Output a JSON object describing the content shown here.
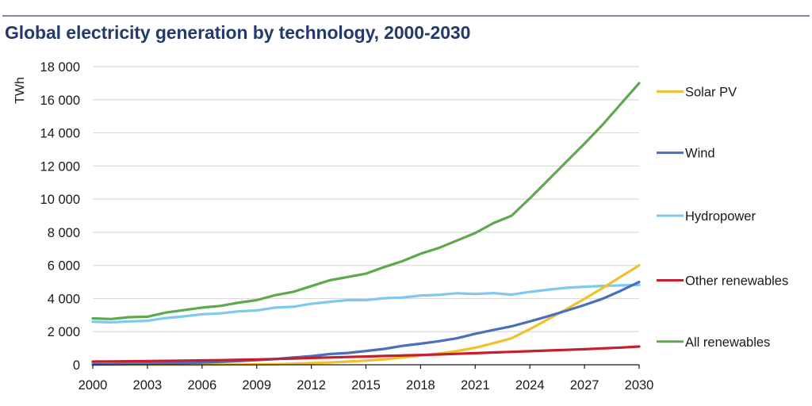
{
  "chart_data": {
    "type": "line",
    "title": "Global electricity generation by technology, 2000-2030",
    "xlabel": "",
    "ylabel": "TWh",
    "xlim": [
      2000,
      2030
    ],
    "ylim": [
      0,
      18000
    ],
    "grid": true,
    "legend_position": "right",
    "x_ticks": [
      2000,
      2003,
      2006,
      2009,
      2012,
      2015,
      2018,
      2021,
      2024,
      2027,
      2030
    ],
    "x_tick_labels": [
      "2000",
      "2003",
      "2006",
      "2009",
      "2012",
      "2015",
      "2018",
      "2021",
      "2024",
      "2027",
      "2030"
    ],
    "y_ticks": [
      0,
      2000,
      4000,
      6000,
      8000,
      10000,
      12000,
      14000,
      16000,
      18000
    ],
    "y_tick_labels": [
      "0",
      "2 000",
      "4 000",
      "6 000",
      "8 000",
      "10 000",
      "12 000",
      "14 000",
      "16 000",
      "18 000"
    ],
    "x": [
      2000,
      2001,
      2002,
      2003,
      2004,
      2005,
      2006,
      2007,
      2008,
      2009,
      2010,
      2011,
      2012,
      2013,
      2014,
      2015,
      2016,
      2017,
      2018,
      2019,
      2020,
      2021,
      2022,
      2023,
      2024,
      2025,
      2026,
      2027,
      2028,
      2029,
      2030
    ],
    "series": [
      {
        "name": "Solar PV",
        "color": "#f0c02f",
        "values": [
          1,
          2,
          3,
          4,
          5,
          5,
          6,
          8,
          12,
          20,
          32,
          60,
          100,
          140,
          190,
          250,
          330,
          440,
          560,
          680,
          830,
          1030,
          1300,
          1600,
          2150,
          2750,
          3350,
          3980,
          4640,
          5320,
          6000
        ]
      },
      {
        "name": "Wind",
        "color": "#4a6fbd",
        "values": [
          30,
          38,
          52,
          63,
          85,
          104,
          133,
          170,
          220,
          276,
          342,
          437,
          522,
          645,
          712,
          831,
          958,
          1140,
          1273,
          1420,
          1600,
          1870,
          2100,
          2320,
          2620,
          2930,
          3260,
          3610,
          3990,
          4470,
          5000
        ]
      },
      {
        "name": "Hydropower",
        "color": "#7fc8ef",
        "values": [
          2600,
          2560,
          2620,
          2650,
          2820,
          2920,
          3050,
          3100,
          3220,
          3280,
          3450,
          3500,
          3680,
          3800,
          3900,
          3900,
          4020,
          4060,
          4180,
          4220,
          4320,
          4270,
          4330,
          4230,
          4400,
          4530,
          4650,
          4710,
          4760,
          4790,
          4820
        ]
      },
      {
        "name": "Other renewables",
        "color": "#c41f2e",
        "values": [
          190,
          200,
          210,
          220,
          235,
          250,
          265,
          280,
          300,
          320,
          350,
          380,
          410,
          440,
          470,
          500,
          530,
          560,
          590,
          620,
          660,
          700,
          740,
          780,
          820,
          860,
          900,
          940,
          990,
          1040,
          1100
        ]
      },
      {
        "name": "All renewables",
        "color": "#5ea84d",
        "values": [
          2800,
          2760,
          2870,
          2900,
          3150,
          3300,
          3450,
          3550,
          3750,
          3900,
          4200,
          4400,
          4750,
          5100,
          5300,
          5500,
          5900,
          6250,
          6700,
          7050,
          7500,
          7950,
          8550,
          9000,
          10050,
          11150,
          12250,
          13350,
          14500,
          15750,
          17000
        ]
      }
    ],
    "legend_order": [
      "Solar PV",
      "Wind",
      "Hydropower",
      "Other renewables",
      "All renewables"
    ],
    "legend_anchor_values": [
      16500,
      12800,
      9000,
      5100,
      1400
    ]
  },
  "colors": {
    "title": "#233a6b",
    "top_rule": "#7d8aa8",
    "grid": "#d9d9d9",
    "axis": "#1a1a1a"
  }
}
